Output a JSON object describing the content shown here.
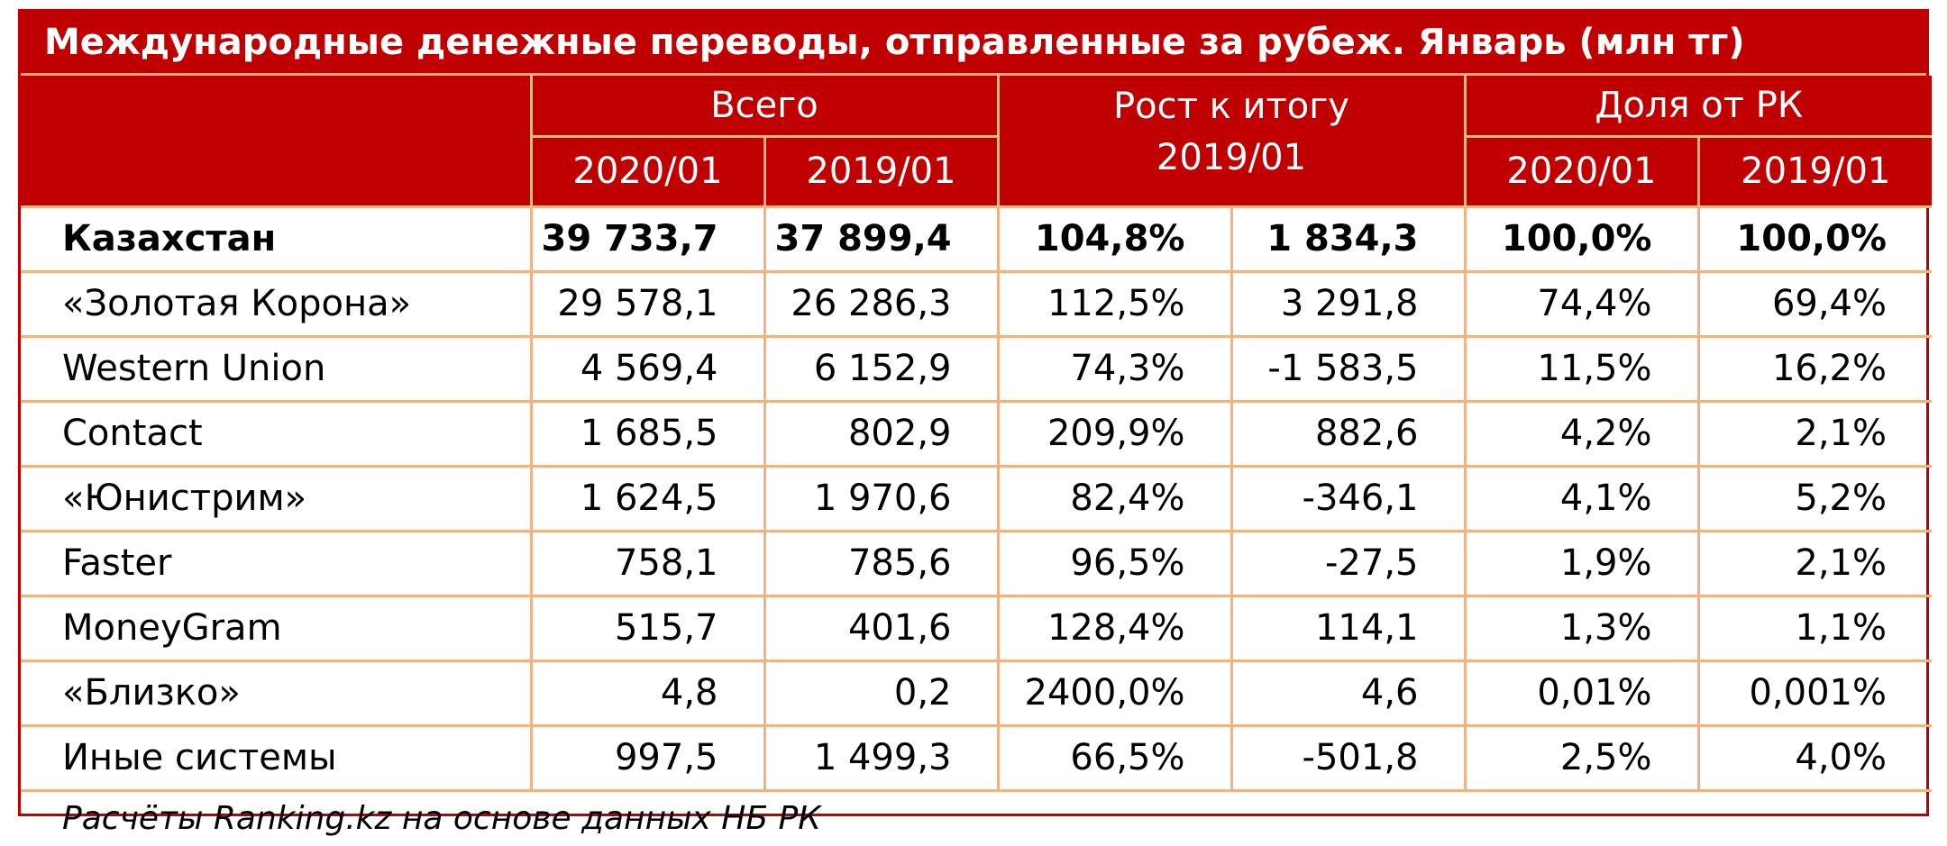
{
  "title": "Международные денежные переводы, отправленные за рубеж. Январь (млн тг)",
  "header": {
    "group_total": "Всего",
    "group_growth": "Рост к итогу",
    "group_share": "Доля от РК",
    "total_y2020": "2020/01",
    "total_y2019": "2019/01",
    "growth_y2019": "2019/01",
    "share_y2020": "2020/01",
    "share_y2019": "2019/01"
  },
  "rows": [
    {
      "name": "Казахстан",
      "v2020": "39 733,7",
      "v2019": "37 899,4",
      "growth_pct": "104,8%",
      "growth_abs": "1 834,3",
      "share2020": "100,0%",
      "share2019": "100,0%"
    },
    {
      "name": "«Золотая Корона»",
      "v2020": "29 578,1",
      "v2019": "26 286,3",
      "growth_pct": "112,5%",
      "growth_abs": "3 291,8",
      "share2020": "74,4%",
      "share2019": "69,4%"
    },
    {
      "name": "Western Union",
      "v2020": "4 569,4",
      "v2019": "6 152,9",
      "growth_pct": "74,3%",
      "growth_abs": "-1 583,5",
      "share2020": "11,5%",
      "share2019": "16,2%"
    },
    {
      "name": "Contact",
      "v2020": "1 685,5",
      "v2019": "802,9",
      "growth_pct": "209,9%",
      "growth_abs": "882,6",
      "share2020": "4,2%",
      "share2019": "2,1%"
    },
    {
      "name": "«Юнистрим»",
      "v2020": "1 624,5",
      "v2019": "1 970,6",
      "growth_pct": "82,4%",
      "growth_abs": "-346,1",
      "share2020": "4,1%",
      "share2019": "5,2%"
    },
    {
      "name": "Faster",
      "v2020": "758,1",
      "v2019": "785,6",
      "growth_pct": "96,5%",
      "growth_abs": "-27,5",
      "share2020": "1,9%",
      "share2019": "2,1%"
    },
    {
      "name": "MoneyGram",
      "v2020": "515,7",
      "v2019": "401,6",
      "growth_pct": "128,4%",
      "growth_abs": "114,1",
      "share2020": "1,3%",
      "share2019": "1,1%"
    },
    {
      "name": "«Близко»",
      "v2020": "4,8",
      "v2019": "0,2",
      "growth_pct": "2400,0%",
      "growth_abs": "4,6",
      "share2020": "0,01%",
      "share2019": "0,001%"
    },
    {
      "name": "Иные системы",
      "v2020": "997,5",
      "v2019": "1 499,3",
      "growth_pct": "66,5%",
      "growth_abs": "-501,8",
      "share2020": "2,5%",
      "share2019": "4,0%"
    }
  ],
  "footer": "Расчёты Ranking.kz на основе данных НБ РК",
  "colors": {
    "header_bg": "#c00000",
    "header_text": "#ffffff",
    "grid_line": "#f4b183",
    "frame": "#c00000"
  }
}
